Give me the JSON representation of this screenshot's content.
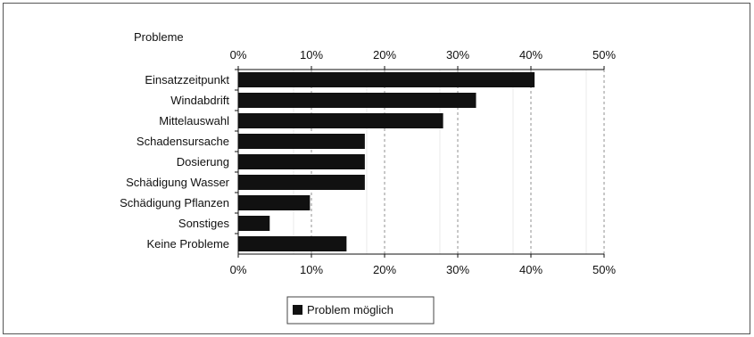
{
  "chart_data": {
    "type": "bar",
    "orientation": "horizontal",
    "title": "",
    "ylabel": "Probleme",
    "xlabel": "",
    "categories": [
      "Einsatzzeitpunkt",
      "Windabdrift",
      "Mittelauswahl",
      "Schadensursache",
      "Dosierung",
      "Schädigung Wasser",
      "Schädigung Pflanzen",
      "Sonstiges",
      "Keine Probleme"
    ],
    "series": [
      {
        "name": "Problem möglich",
        "color": "#111111",
        "values": [
          40.5,
          32.5,
          28.0,
          17.3,
          17.3,
          17.3,
          9.8,
          4.3,
          14.8
        ]
      }
    ],
    "xlim": [
      0,
      50
    ],
    "xticks": [
      "0%",
      "10%",
      "20%",
      "30%",
      "40%",
      "50%"
    ],
    "xtick_values": [
      0,
      10,
      20,
      30,
      40,
      50
    ],
    "axis_positions": [
      "top",
      "bottom"
    ],
    "grid": "vertical-dashed",
    "legend_position": "bottom-center"
  }
}
